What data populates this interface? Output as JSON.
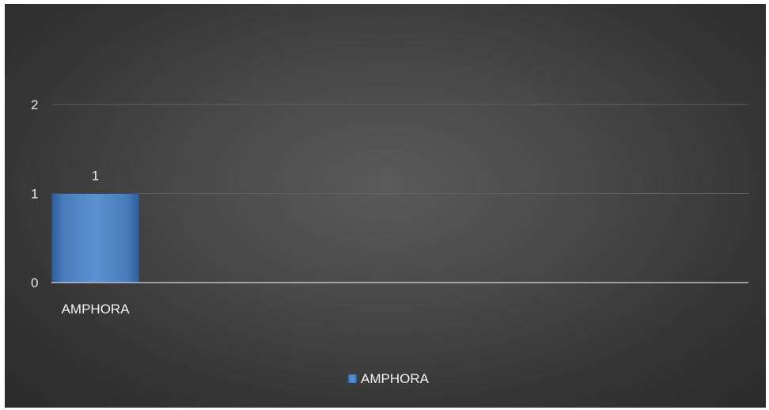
{
  "chart_data": {
    "type": "bar",
    "categories": [
      "AMPHORA"
    ],
    "series": [
      {
        "name": "AMPHORA",
        "values": [
          1
        ],
        "color": "#4a7ebb"
      }
    ],
    "ylim": [
      0,
      2
    ],
    "yticks": [
      0,
      1,
      2
    ],
    "data_labels": true,
    "grid": true,
    "legend": "bottom",
    "background": "#404040",
    "gridline_color": "#5f5f5f",
    "axis_color": "#bfbfbf"
  }
}
